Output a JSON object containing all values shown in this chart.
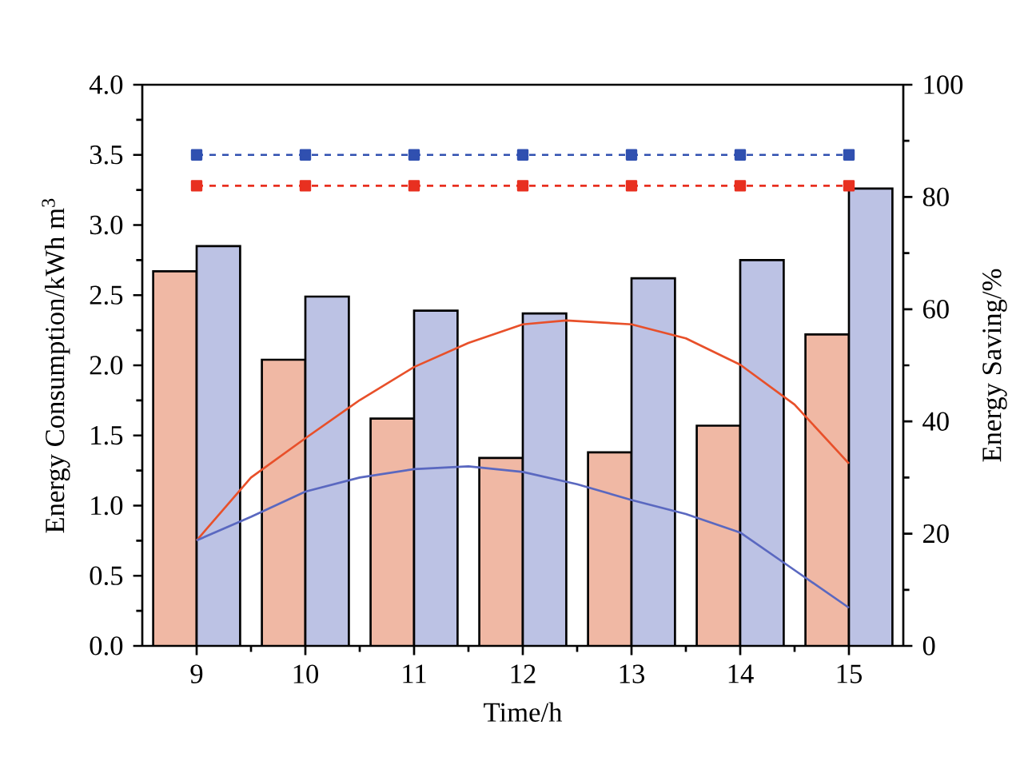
{
  "chart_data": {
    "type": "bar",
    "xlabel": "Time/h",
    "ylabel": "Energy Consumption/kWh m$^{3}$",
    "y2label": "Energy Saving/%",
    "xlim": [
      8.5,
      15.5
    ],
    "xticks": [
      9,
      10,
      11,
      12,
      13,
      14,
      15
    ],
    "ylim": [
      0,
      4
    ],
    "yticks": [
      {
        "value": 0,
        "label": "0.0"
      },
      {
        "value": 0.5,
        "label": "0.5"
      },
      {
        "value": 1,
        "label": "1.0"
      },
      {
        "value": 1.5,
        "label": "1.5"
      },
      {
        "value": 2,
        "label": "2.0"
      },
      {
        "value": 2.5,
        "label": "2.5"
      },
      {
        "value": 3,
        "label": "3.0"
      },
      {
        "value": 3.5,
        "label": "3.5"
      },
      {
        "value": 4,
        "label": "4.0"
      }
    ],
    "y2lim": [
      0,
      100
    ],
    "y2ticks": [
      0,
      20,
      40,
      60,
      80,
      100
    ],
    "series": [
      {
        "color": "#f0b8a4",
        "x": [
          9,
          10,
          11,
          12,
          13,
          14,
          15
        ],
        "values": [
          2.67,
          2.04,
          1.62,
          1.34,
          1.38,
          1.57,
          2.22
        ]
      },
      {
        "color": "#bcc2e4",
        "x": [
          9,
          10,
          11,
          12,
          13,
          14,
          15
        ],
        "values": [
          2.85,
          2.49,
          2.39,
          2.37,
          2.62,
          2.75,
          3.26
        ]
      },
      {
        "type": "line",
        "axis": "y2",
        "color": "#e8502a",
        "marker": "none",
        "line_style": "solid",
        "x": [
          9,
          9.5,
          10,
          10.5,
          11,
          11.5,
          12,
          12.4,
          13,
          13.5,
          14,
          14.5,
          15
        ],
        "values": [
          18.8,
          30,
          37,
          43.8,
          49.7,
          54,
          57.3,
          58,
          57.3,
          54.8,
          50.1,
          43,
          32.5
        ]
      },
      {
        "type": "line",
        "axis": "y2",
        "color": "#5a68c0",
        "marker": "none",
        "line_style": "solid",
        "x": [
          9,
          9.5,
          10,
          10.5,
          11,
          11.5,
          12,
          12.5,
          13,
          13.5,
          14,
          14.5,
          15
        ],
        "values": [
          18.8,
          23,
          27.5,
          30,
          31.5,
          32,
          31,
          28.8,
          26,
          23.5,
          20.2,
          13.5,
          6.8
        ]
      },
      {
        "type": "line",
        "axis": "y2",
        "color": "#3050b0",
        "marker": "square",
        "line_style": "dashed",
        "x": [
          9,
          10,
          11,
          12,
          13,
          14,
          15
        ],
        "values": [
          87.5,
          87.5,
          87.5,
          87.5,
          87.5,
          87.5,
          87.5
        ]
      },
      {
        "type": "line",
        "axis": "y2",
        "color": "#e83020",
        "marker": "square",
        "line_style": "dashed",
        "x": [
          9,
          10,
          11,
          12,
          13,
          14,
          15
        ],
        "values": [
          82,
          82,
          82,
          82,
          82,
          82,
          82
        ]
      }
    ]
  }
}
